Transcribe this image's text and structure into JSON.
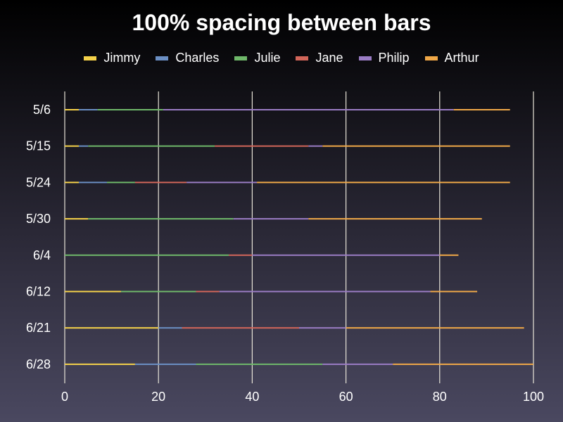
{
  "chart_data": {
    "type": "bar",
    "orientation": "horizontal",
    "stacked": true,
    "title": "100% spacing between bars",
    "xlabel": "",
    "ylabel": "",
    "xlim": [
      0,
      100
    ],
    "xticks": [
      0,
      20,
      40,
      60,
      80,
      100
    ],
    "grid": true,
    "legend_position": "top",
    "categories": [
      "5/6",
      "5/15",
      "5/24",
      "5/30",
      "6/4",
      "6/12",
      "6/21",
      "6/28"
    ],
    "series": [
      {
        "name": "Jimmy",
        "color": "#f5d24a",
        "values": [
          3,
          3,
          3,
          5,
          0,
          12,
          20,
          15
        ]
      },
      {
        "name": "Charles",
        "color": "#6b8fc4",
        "values": [
          4,
          2,
          6,
          0,
          0,
          0,
          5,
          13
        ]
      },
      {
        "name": "Julie",
        "color": "#6fb86a",
        "values": [
          14,
          27,
          6,
          31,
          35,
          16,
          0,
          27
        ]
      },
      {
        "name": "Jane",
        "color": "#d2665a",
        "values": [
          0,
          20,
          11,
          0,
          5,
          5,
          25,
          0
        ]
      },
      {
        "name": "Philip",
        "color": "#9a7cc4",
        "values": [
          62,
          3,
          15,
          16,
          40,
          45,
          10,
          15
        ]
      },
      {
        "name": "Arthur",
        "color": "#f0a848",
        "values": [
          12,
          40,
          54,
          37,
          4,
          10,
          38,
          30
        ]
      }
    ]
  }
}
